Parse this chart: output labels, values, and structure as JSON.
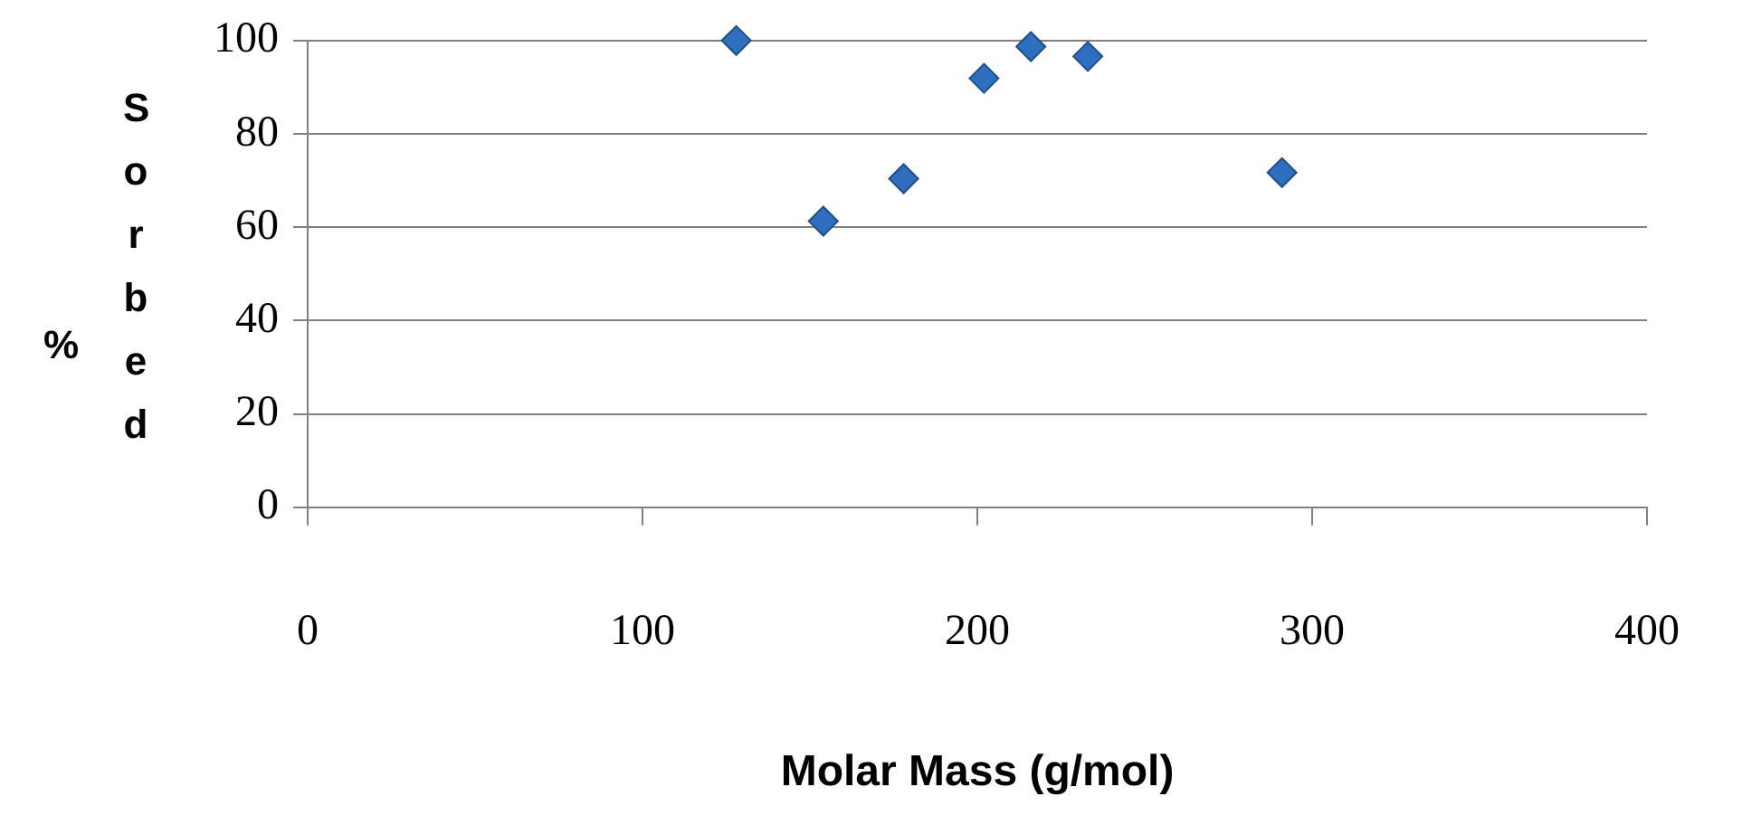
{
  "chart_data": {
    "type": "scatter",
    "xlabel": "Molar Mass (g/mol)",
    "ylabel": "% Sorbed",
    "series": [
      {
        "color": "#2f6fbf",
        "x": [
          128,
          154,
          178,
          202,
          216,
          233,
          291
        ],
        "values": [
          100,
          61.3,
          70.4,
          91.9,
          98.7,
          96.6,
          71.7
        ]
      }
    ],
    "xlim": [
      0,
      400
    ],
    "xticks": [
      0,
      100,
      200,
      300,
      400
    ],
    "ylim": [
      0,
      100
    ],
    "yticks": [
      0,
      20,
      40,
      60,
      80,
      100
    ],
    "grid": "y",
    "legend": false,
    "marker": "diamond"
  }
}
